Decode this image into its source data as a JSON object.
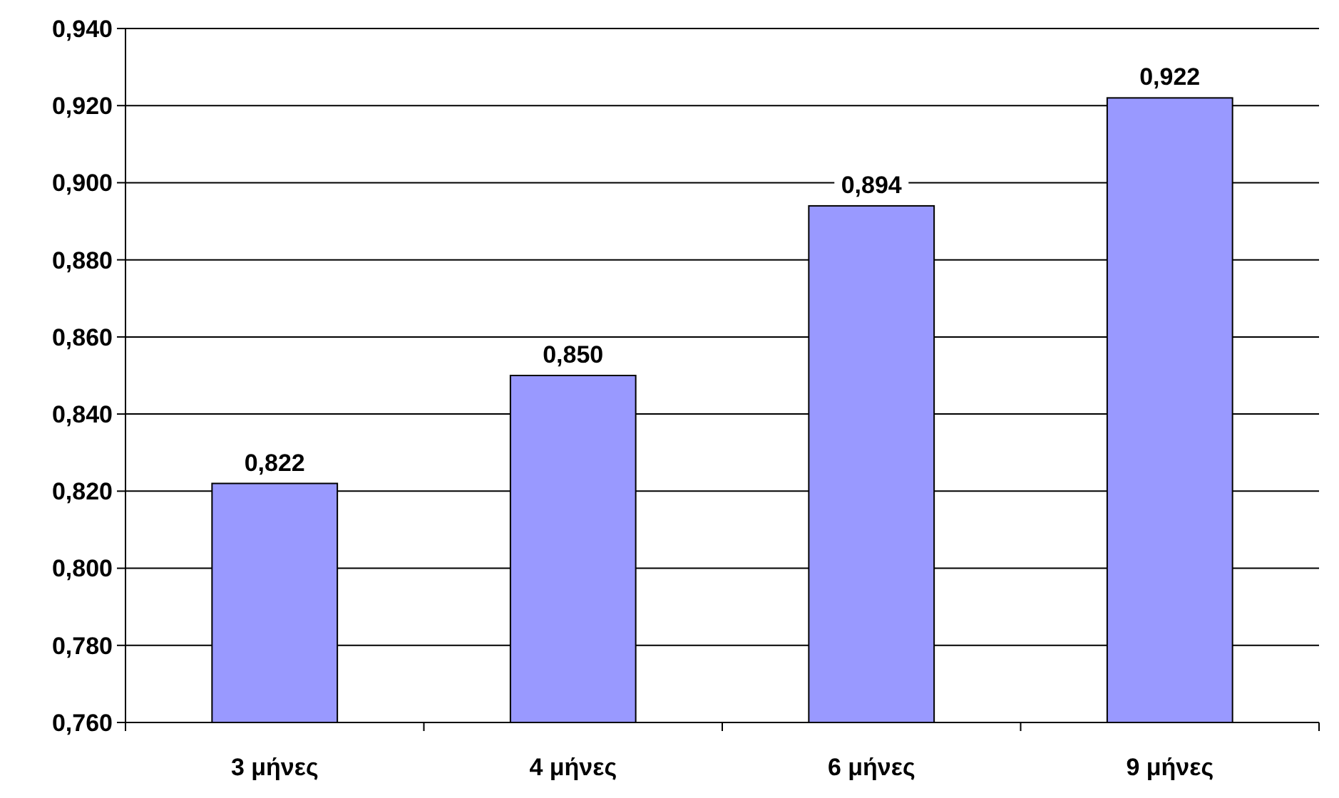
{
  "chart_data": {
    "type": "bar",
    "categories": [
      "3 μήνες",
      "4 μήνες",
      "6 μήνες",
      "9 μήνες"
    ],
    "values": [
      0.822,
      0.85,
      0.894,
      0.922
    ],
    "color": "#9999ff",
    "value_labels": [
      "0,822",
      "0,850",
      "0,894",
      "0,922"
    ],
    "ylim": [
      0.76,
      0.94
    ],
    "yticks": [
      {
        "value": 0.76,
        "label": "0,760"
      },
      {
        "value": 0.78,
        "label": "0,780"
      },
      {
        "value": 0.8,
        "label": "0,800"
      },
      {
        "value": 0.82,
        "label": "0,820"
      },
      {
        "value": 0.84,
        "label": "0,840"
      },
      {
        "value": 0.86,
        "label": "0,860"
      },
      {
        "value": 0.88,
        "label": "0,880"
      },
      {
        "value": 0.9,
        "label": "0,900"
      },
      {
        "value": 0.92,
        "label": "0,920"
      },
      {
        "value": 0.94,
        "label": "0,940"
      }
    ],
    "grid": "y"
  }
}
